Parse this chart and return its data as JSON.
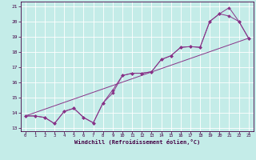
{
  "xlabel": "Windchill (Refroidissement éolien,°C)",
  "bg_color": "#c4ece8",
  "line_color": "#883388",
  "grid_color": "#aadddd",
  "xlim": [
    -0.5,
    23.5
  ],
  "ylim": [
    12.8,
    21.3
  ],
  "xticks": [
    0,
    1,
    2,
    3,
    4,
    5,
    6,
    7,
    8,
    9,
    10,
    11,
    12,
    13,
    14,
    15,
    16,
    17,
    18,
    19,
    20,
    21,
    22,
    23
  ],
  "yticks": [
    13,
    14,
    15,
    16,
    17,
    18,
    19,
    20,
    21
  ],
  "series1_x": [
    0,
    1,
    2,
    3,
    4,
    5,
    6,
    7,
    8,
    9,
    10,
    11,
    12,
    13,
    14,
    15,
    16,
    17,
    18,
    19,
    20,
    21,
    22,
    23
  ],
  "series1_y": [
    13.8,
    13.8,
    13.7,
    13.3,
    14.1,
    14.3,
    13.7,
    13.35,
    14.65,
    15.3,
    16.45,
    16.6,
    16.6,
    16.7,
    17.5,
    17.75,
    18.3,
    18.35,
    18.3,
    20.0,
    20.5,
    20.9,
    20.0,
    18.9
  ],
  "series2_x": [
    0,
    1,
    2,
    3,
    4,
    5,
    6,
    7,
    8,
    9,
    10,
    11,
    12,
    13,
    14,
    15,
    16,
    17,
    18,
    19,
    20,
    21,
    22,
    23
  ],
  "series2_y": [
    13.8,
    13.8,
    13.7,
    13.3,
    14.1,
    14.3,
    13.7,
    13.35,
    14.65,
    15.5,
    16.45,
    16.6,
    16.6,
    16.7,
    17.5,
    17.75,
    18.3,
    18.35,
    18.3,
    20.0,
    20.5,
    20.35,
    20.0,
    18.9
  ],
  "series3_x": [
    0,
    23
  ],
  "series3_y": [
    13.8,
    18.9
  ],
  "marker_xs1": [
    0,
    1,
    2,
    3,
    4,
    5,
    6,
    7,
    8,
    9,
    10,
    11,
    12,
    13,
    14,
    15,
    16,
    17,
    18,
    19,
    20,
    21,
    22,
    23
  ],
  "marker_ys1": [
    13.8,
    13.8,
    13.7,
    13.3,
    14.1,
    14.3,
    13.7,
    13.35,
    14.65,
    15.3,
    16.45,
    16.6,
    16.6,
    16.7,
    17.5,
    17.75,
    18.3,
    18.35,
    18.3,
    20.0,
    20.5,
    20.9,
    20.0,
    18.9
  ],
  "marker_xs2": [
    0,
    1,
    2,
    3,
    4,
    5,
    6,
    7,
    8,
    9,
    10,
    11,
    12,
    13,
    14,
    15,
    16,
    17,
    18,
    19,
    20,
    21,
    22,
    23
  ],
  "marker_ys2": [
    13.8,
    13.8,
    13.7,
    13.3,
    14.1,
    14.3,
    13.7,
    13.35,
    14.65,
    15.5,
    16.45,
    16.6,
    16.6,
    16.7,
    17.5,
    17.75,
    18.3,
    18.35,
    18.3,
    20.0,
    20.5,
    20.35,
    20.0,
    18.9
  ]
}
